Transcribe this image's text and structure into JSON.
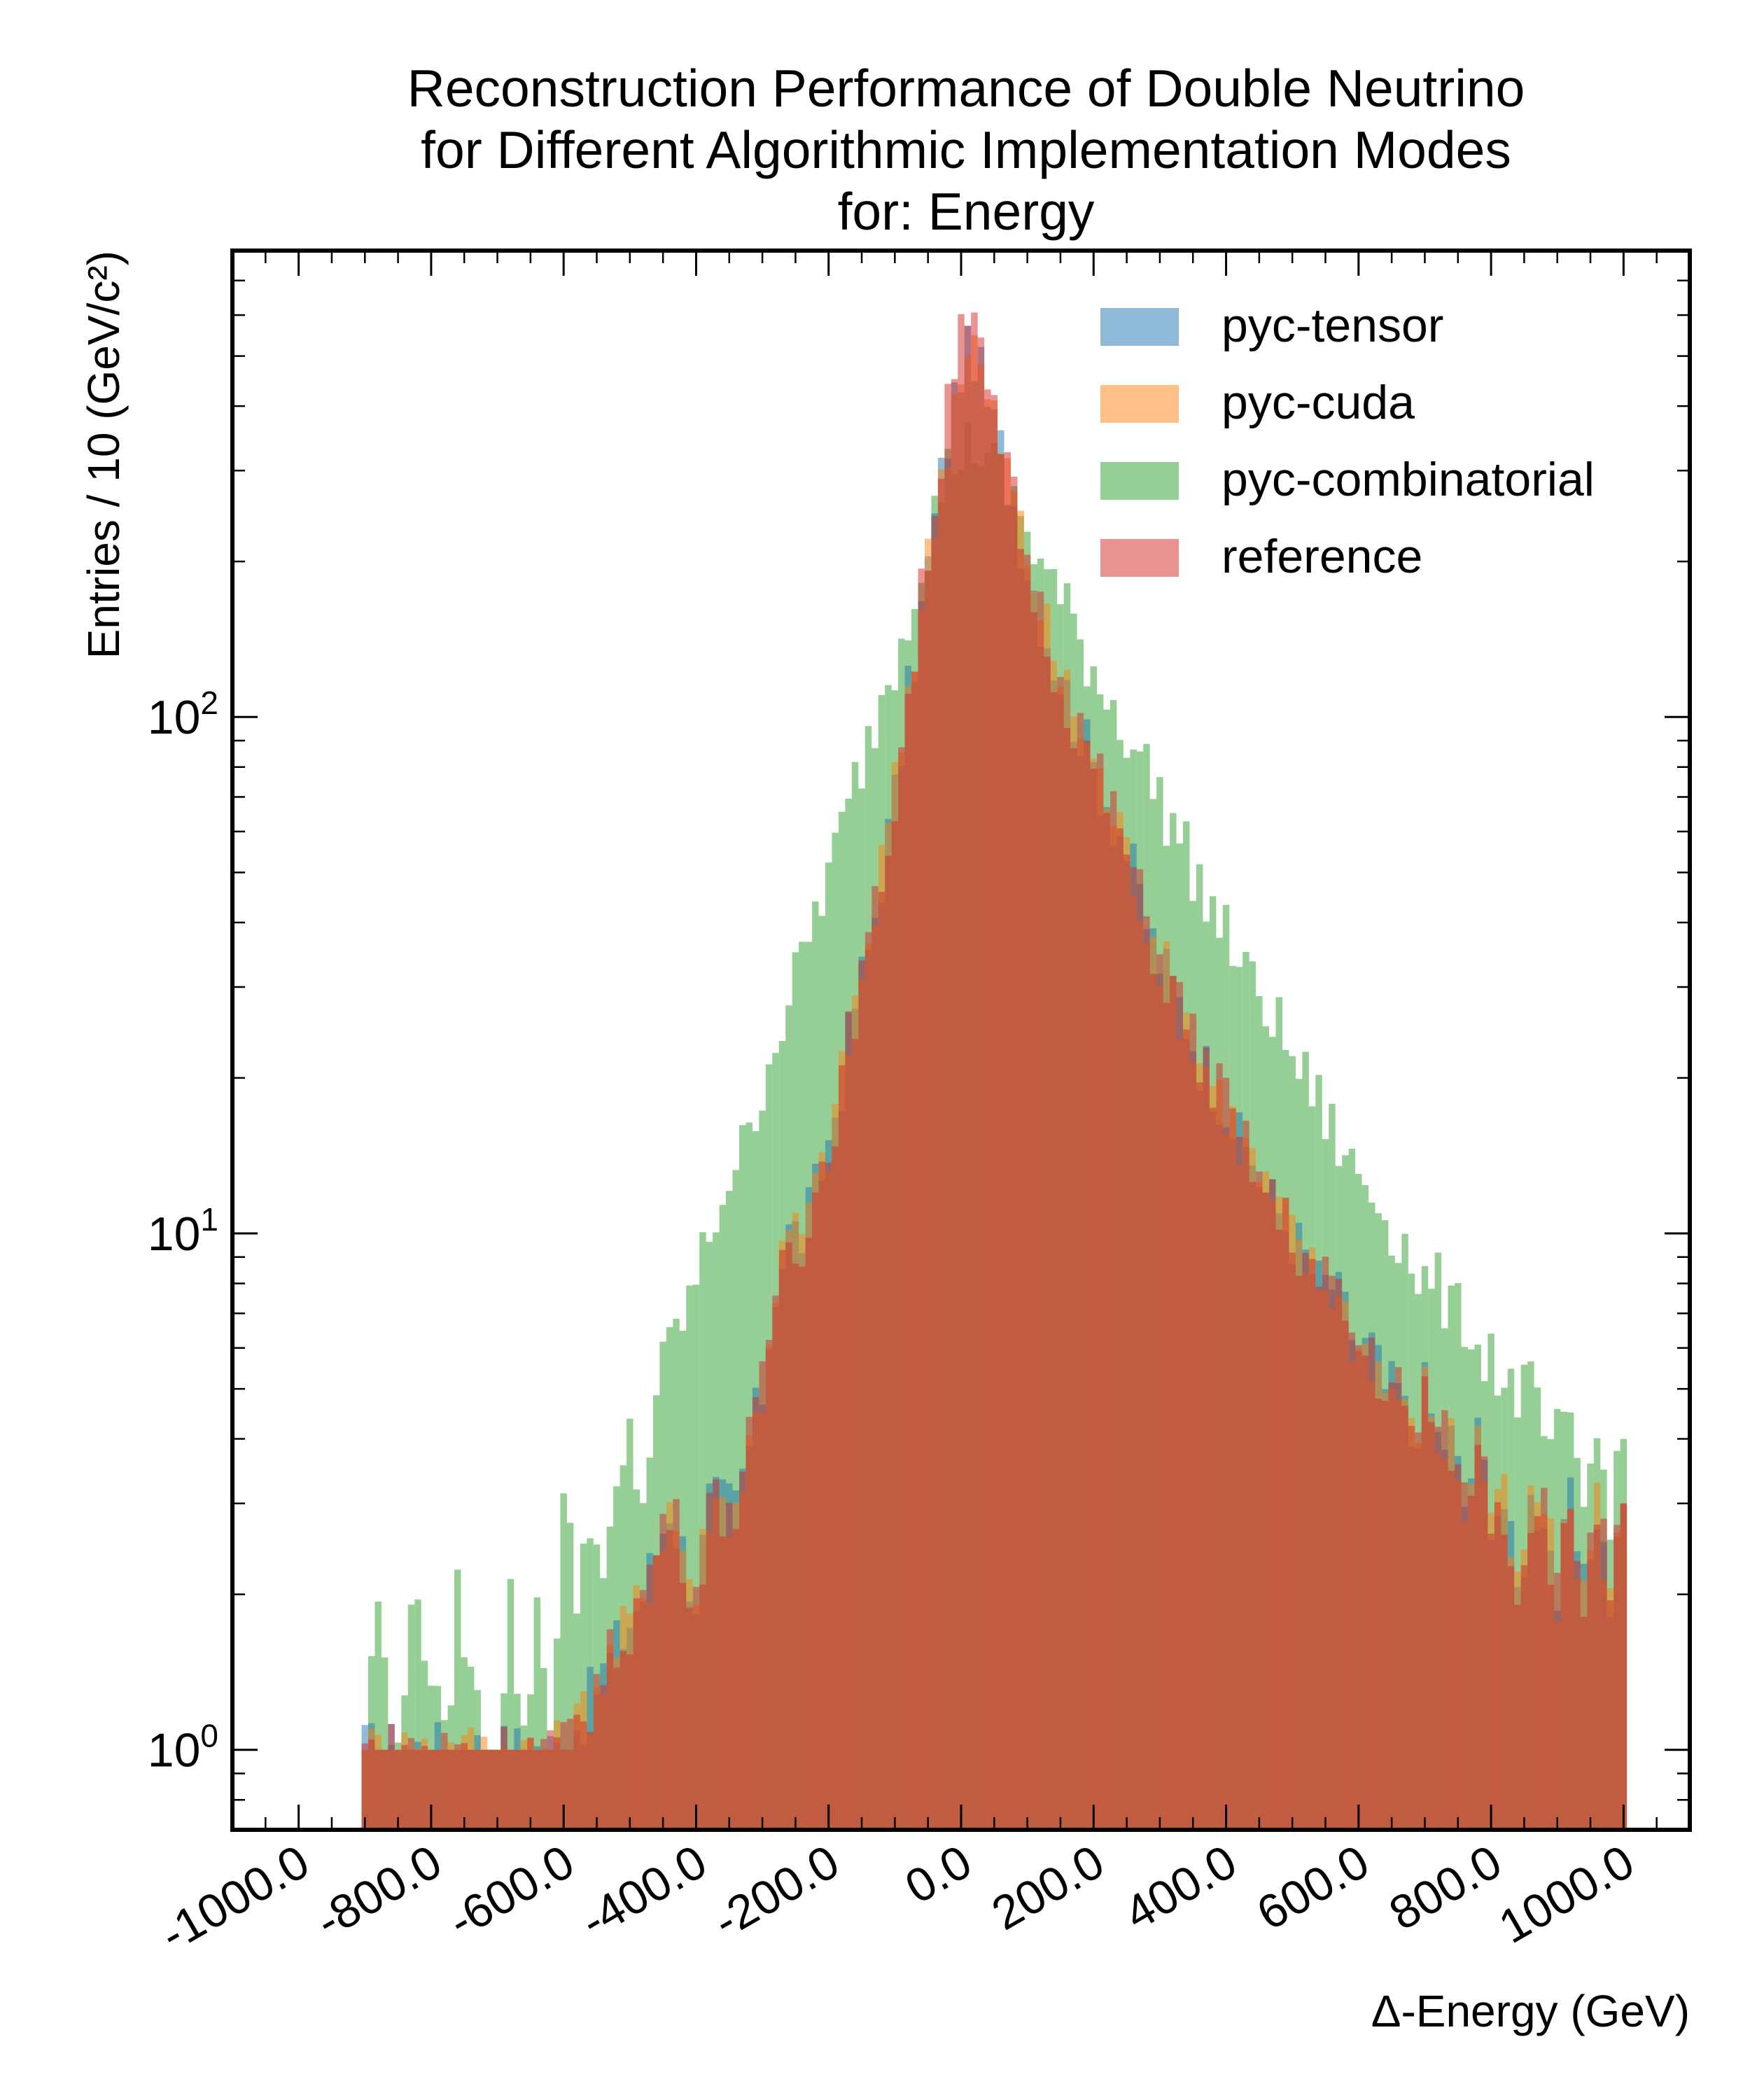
{
  "chart_data": {
    "type": "histogram",
    "title": [
      "Reconstruction Performance of Double Neutrino",
      "for Different Algorithmic Implementation Modes",
      "for: Energy"
    ],
    "xlabel": "Δ-Energy (GeV)",
    "ylabel": "Entries  / 10 (GeV/c²)",
    "y_scale": "log",
    "xlim": [
      -1100,
      1100
    ],
    "ylim": [
      0.7,
      800
    ],
    "bin_width": 10,
    "x_ticks": [
      -1000,
      -800,
      -600,
      -400,
      -200,
      0,
      200,
      400,
      600,
      800,
      1000
    ],
    "x_tick_labels": [
      "-1000.0",
      "-800.0",
      "-600.0",
      "-400.0",
      "-200.0",
      "0.0",
      "200.0",
      "400.0",
      "600.0",
      "800.0",
      "1000.0"
    ],
    "y_ticks": [
      1,
      10,
      100
    ],
    "y_tick_base": "10",
    "y_tick_exponents": [
      "0",
      "1",
      "2"
    ],
    "legend": "top-right",
    "series": [
      {
        "name": "pyc-tensor",
        "color": "#1f77b4",
        "points": [
          [
            -900,
            1
          ],
          [
            -700,
            1
          ],
          [
            -600,
            1
          ],
          [
            -480,
            2
          ],
          [
            -440,
            3
          ],
          [
            -400,
            2
          ],
          [
            -380,
            3
          ],
          [
            -340,
            3
          ],
          [
            -300,
            5
          ],
          [
            -280,
            8
          ],
          [
            -260,
            10
          ],
          [
            -240,
            10
          ],
          [
            -220,
            12
          ],
          [
            -200,
            15
          ],
          [
            -180,
            20
          ],
          [
            -160,
            28
          ],
          [
            -140,
            35
          ],
          [
            -120,
            50
          ],
          [
            -100,
            70
          ],
          [
            -80,
            110
          ],
          [
            -60,
            160
          ],
          [
            -40,
            240
          ],
          [
            -20,
            350
          ],
          [
            0,
            480
          ],
          [
            20,
            520
          ],
          [
            40,
            400
          ],
          [
            60,
            330
          ],
          [
            80,
            260
          ],
          [
            100,
            200
          ],
          [
            120,
            160
          ],
          [
            140,
            130
          ],
          [
            160,
            110
          ],
          [
            180,
            95
          ],
          [
            200,
            80
          ],
          [
            220,
            70
          ],
          [
            240,
            60
          ],
          [
            260,
            50
          ],
          [
            280,
            40
          ],
          [
            300,
            34
          ],
          [
            320,
            30
          ],
          [
            340,
            26
          ],
          [
            360,
            22
          ],
          [
            380,
            20
          ],
          [
            400,
            18
          ],
          [
            420,
            15
          ],
          [
            440,
            14
          ],
          [
            460,
            12
          ],
          [
            480,
            11
          ],
          [
            500,
            10
          ],
          [
            520,
            9
          ],
          [
            540,
            8
          ],
          [
            560,
            8
          ],
          [
            580,
            7
          ],
          [
            600,
            6
          ],
          [
            620,
            6
          ],
          [
            640,
            5
          ],
          [
            660,
            5
          ],
          [
            680,
            4
          ],
          [
            700,
            5
          ],
          [
            720,
            4
          ],
          [
            740,
            4
          ],
          [
            760,
            3
          ],
          [
            780,
            4
          ],
          [
            800,
            3
          ],
          [
            820,
            3
          ],
          [
            840,
            2
          ],
          [
            860,
            3
          ],
          [
            880,
            3
          ],
          [
            900,
            2
          ],
          [
            920,
            3
          ],
          [
            940,
            2
          ],
          [
            960,
            3
          ],
          [
            980,
            2
          ],
          [
            1000,
            3
          ]
        ]
      },
      {
        "name": "pyc-cuda",
        "color": "#ff7f0e",
        "points": [
          [
            -900,
            1
          ],
          [
            -700,
            1
          ],
          [
            -600,
            1
          ],
          [
            -480,
            2
          ],
          [
            -440,
            3
          ],
          [
            -400,
            2
          ],
          [
            -380,
            3
          ],
          [
            -340,
            3
          ],
          [
            -300,
            5
          ],
          [
            -280,
            8
          ],
          [
            -260,
            10
          ],
          [
            -240,
            10
          ],
          [
            -220,
            12
          ],
          [
            -200,
            15
          ],
          [
            -180,
            20
          ],
          [
            -160,
            28
          ],
          [
            -140,
            35
          ],
          [
            -120,
            52
          ],
          [
            -100,
            72
          ],
          [
            -80,
            115
          ],
          [
            -60,
            165
          ],
          [
            -40,
            245
          ],
          [
            -20,
            355
          ],
          [
            0,
            490
          ],
          [
            20,
            530
          ],
          [
            40,
            410
          ],
          [
            60,
            340
          ],
          [
            80,
            265
          ],
          [
            100,
            205
          ],
          [
            120,
            165
          ],
          [
            140,
            130
          ],
          [
            160,
            112
          ],
          [
            180,
            96
          ],
          [
            200,
            82
          ],
          [
            220,
            70
          ],
          [
            240,
            60
          ],
          [
            260,
            50
          ],
          [
            280,
            41
          ],
          [
            300,
            35
          ],
          [
            320,
            30
          ],
          [
            340,
            26
          ],
          [
            360,
            22
          ],
          [
            380,
            20
          ],
          [
            400,
            18
          ],
          [
            420,
            15
          ],
          [
            440,
            14
          ],
          [
            460,
            12
          ],
          [
            480,
            11
          ],
          [
            500,
            10
          ],
          [
            520,
            9
          ],
          [
            540,
            8
          ],
          [
            560,
            8
          ],
          [
            580,
            7
          ],
          [
            600,
            6
          ],
          [
            620,
            6
          ],
          [
            640,
            5
          ],
          [
            660,
            5
          ],
          [
            680,
            4
          ],
          [
            700,
            5
          ],
          [
            720,
            4
          ],
          [
            740,
            4
          ],
          [
            760,
            3
          ],
          [
            780,
            4
          ],
          [
            800,
            3
          ],
          [
            820,
            3
          ],
          [
            840,
            2
          ],
          [
            860,
            3
          ],
          [
            880,
            3
          ],
          [
            900,
            2
          ],
          [
            920,
            3
          ],
          [
            940,
            2
          ],
          [
            960,
            3
          ],
          [
            980,
            2
          ],
          [
            1000,
            3
          ]
        ]
      },
      {
        "name": "pyc-combinatorial",
        "color": "#2ca02c",
        "points": [
          [
            -900,
            1
          ],
          [
            -880,
            2
          ],
          [
            -860,
            1
          ],
          [
            -820,
            2
          ],
          [
            -780,
            1
          ],
          [
            -760,
            2
          ],
          [
            -720,
            1
          ],
          [
            -700,
            1
          ],
          [
            -680,
            2
          ],
          [
            -660,
            1
          ],
          [
            -640,
            2
          ],
          [
            -620,
            1
          ],
          [
            -600,
            3
          ],
          [
            -580,
            2
          ],
          [
            -560,
            3
          ],
          [
            -540,
            2
          ],
          [
            -520,
            3
          ],
          [
            -500,
            4
          ],
          [
            -480,
            3
          ],
          [
            -460,
            5
          ],
          [
            -440,
            6
          ],
          [
            -420,
            7
          ],
          [
            -400,
            8
          ],
          [
            -380,
            10
          ],
          [
            -360,
            12
          ],
          [
            -340,
            14
          ],
          [
            -320,
            15
          ],
          [
            -300,
            20
          ],
          [
            -280,
            24
          ],
          [
            -260,
            28
          ],
          [
            -240,
            34
          ],
          [
            -220,
            42
          ],
          [
            -200,
            50
          ],
          [
            -180,
            60
          ],
          [
            -160,
            75
          ],
          [
            -140,
            90
          ],
          [
            -120,
            110
          ],
          [
            -100,
            130
          ],
          [
            -80,
            165
          ],
          [
            -60,
            200
          ],
          [
            -40,
            250
          ],
          [
            -20,
            300
          ],
          [
            0,
            330
          ],
          [
            20,
            340
          ],
          [
            40,
            320
          ],
          [
            60,
            290
          ],
          [
            80,
            260
          ],
          [
            100,
            230
          ],
          [
            120,
            200
          ],
          [
            140,
            180
          ],
          [
            160,
            160
          ],
          [
            180,
            140
          ],
          [
            200,
            125
          ],
          [
            220,
            110
          ],
          [
            240,
            100
          ],
          [
            260,
            90
          ],
          [
            280,
            80
          ],
          [
            300,
            70
          ],
          [
            320,
            62
          ],
          [
            340,
            55
          ],
          [
            360,
            48
          ],
          [
            380,
            42
          ],
          [
            400,
            38
          ],
          [
            420,
            34
          ],
          [
            440,
            30
          ],
          [
            460,
            28
          ],
          [
            480,
            25
          ],
          [
            500,
            22
          ],
          [
            520,
            20
          ],
          [
            540,
            18
          ],
          [
            560,
            16
          ],
          [
            580,
            14
          ],
          [
            600,
            13
          ],
          [
            620,
            12
          ],
          [
            640,
            11
          ],
          [
            660,
            10
          ],
          [
            680,
            9
          ],
          [
            700,
            8
          ],
          [
            720,
            8
          ],
          [
            740,
            7
          ],
          [
            760,
            7
          ],
          [
            780,
            6
          ],
          [
            800,
            6
          ],
          [
            820,
            5
          ],
          [
            840,
            5
          ],
          [
            860,
            5
          ],
          [
            880,
            4
          ],
          [
            900,
            4
          ],
          [
            920,
            4
          ],
          [
            940,
            3
          ],
          [
            960,
            4
          ],
          [
            980,
            3
          ],
          [
            1000,
            4
          ]
        ]
      },
      {
        "name": "reference",
        "color": "#d62728",
        "points": [
          [
            -900,
            1
          ],
          [
            -700,
            1
          ],
          [
            -640,
            1
          ],
          [
            -600,
            1
          ],
          [
            -480,
            2
          ],
          [
            -440,
            3
          ],
          [
            -400,
            2
          ],
          [
            -380,
            3
          ],
          [
            -340,
            3
          ],
          [
            -300,
            5
          ],
          [
            -280,
            8
          ],
          [
            -260,
            10
          ],
          [
            -240,
            10
          ],
          [
            -220,
            12
          ],
          [
            -200,
            15
          ],
          [
            -180,
            20
          ],
          [
            -160,
            28
          ],
          [
            -140,
            35
          ],
          [
            -120,
            50
          ],
          [
            -100,
            70
          ],
          [
            -80,
            110
          ],
          [
            -60,
            170
          ],
          [
            -40,
            260
          ],
          [
            -20,
            420
          ],
          [
            0,
            650
          ],
          [
            20,
            560
          ],
          [
            40,
            420
          ],
          [
            60,
            330
          ],
          [
            80,
            260
          ],
          [
            100,
            200
          ],
          [
            120,
            160
          ],
          [
            140,
            130
          ],
          [
            160,
            110
          ],
          [
            180,
            95
          ],
          [
            200,
            80
          ],
          [
            220,
            70
          ],
          [
            240,
            60
          ],
          [
            260,
            50
          ],
          [
            280,
            40
          ],
          [
            300,
            34
          ],
          [
            320,
            30
          ],
          [
            340,
            26
          ],
          [
            360,
            22
          ],
          [
            380,
            20
          ],
          [
            400,
            18
          ],
          [
            420,
            15
          ],
          [
            440,
            14
          ],
          [
            460,
            12
          ],
          [
            480,
            11
          ],
          [
            500,
            10
          ],
          [
            520,
            9
          ],
          [
            540,
            8
          ],
          [
            560,
            8
          ],
          [
            580,
            7
          ],
          [
            600,
            6
          ],
          [
            620,
            6
          ],
          [
            640,
            5
          ],
          [
            660,
            5
          ],
          [
            680,
            4
          ],
          [
            700,
            5
          ],
          [
            720,
            4
          ],
          [
            740,
            4
          ],
          [
            760,
            3
          ],
          [
            780,
            4
          ],
          [
            800,
            3
          ],
          [
            820,
            3
          ],
          [
            840,
            2
          ],
          [
            860,
            3
          ],
          [
            880,
            3
          ],
          [
            900,
            2
          ],
          [
            920,
            3
          ],
          [
            940,
            2
          ],
          [
            960,
            3
          ],
          [
            980,
            2
          ],
          [
            1000,
            3
          ]
        ]
      }
    ]
  }
}
